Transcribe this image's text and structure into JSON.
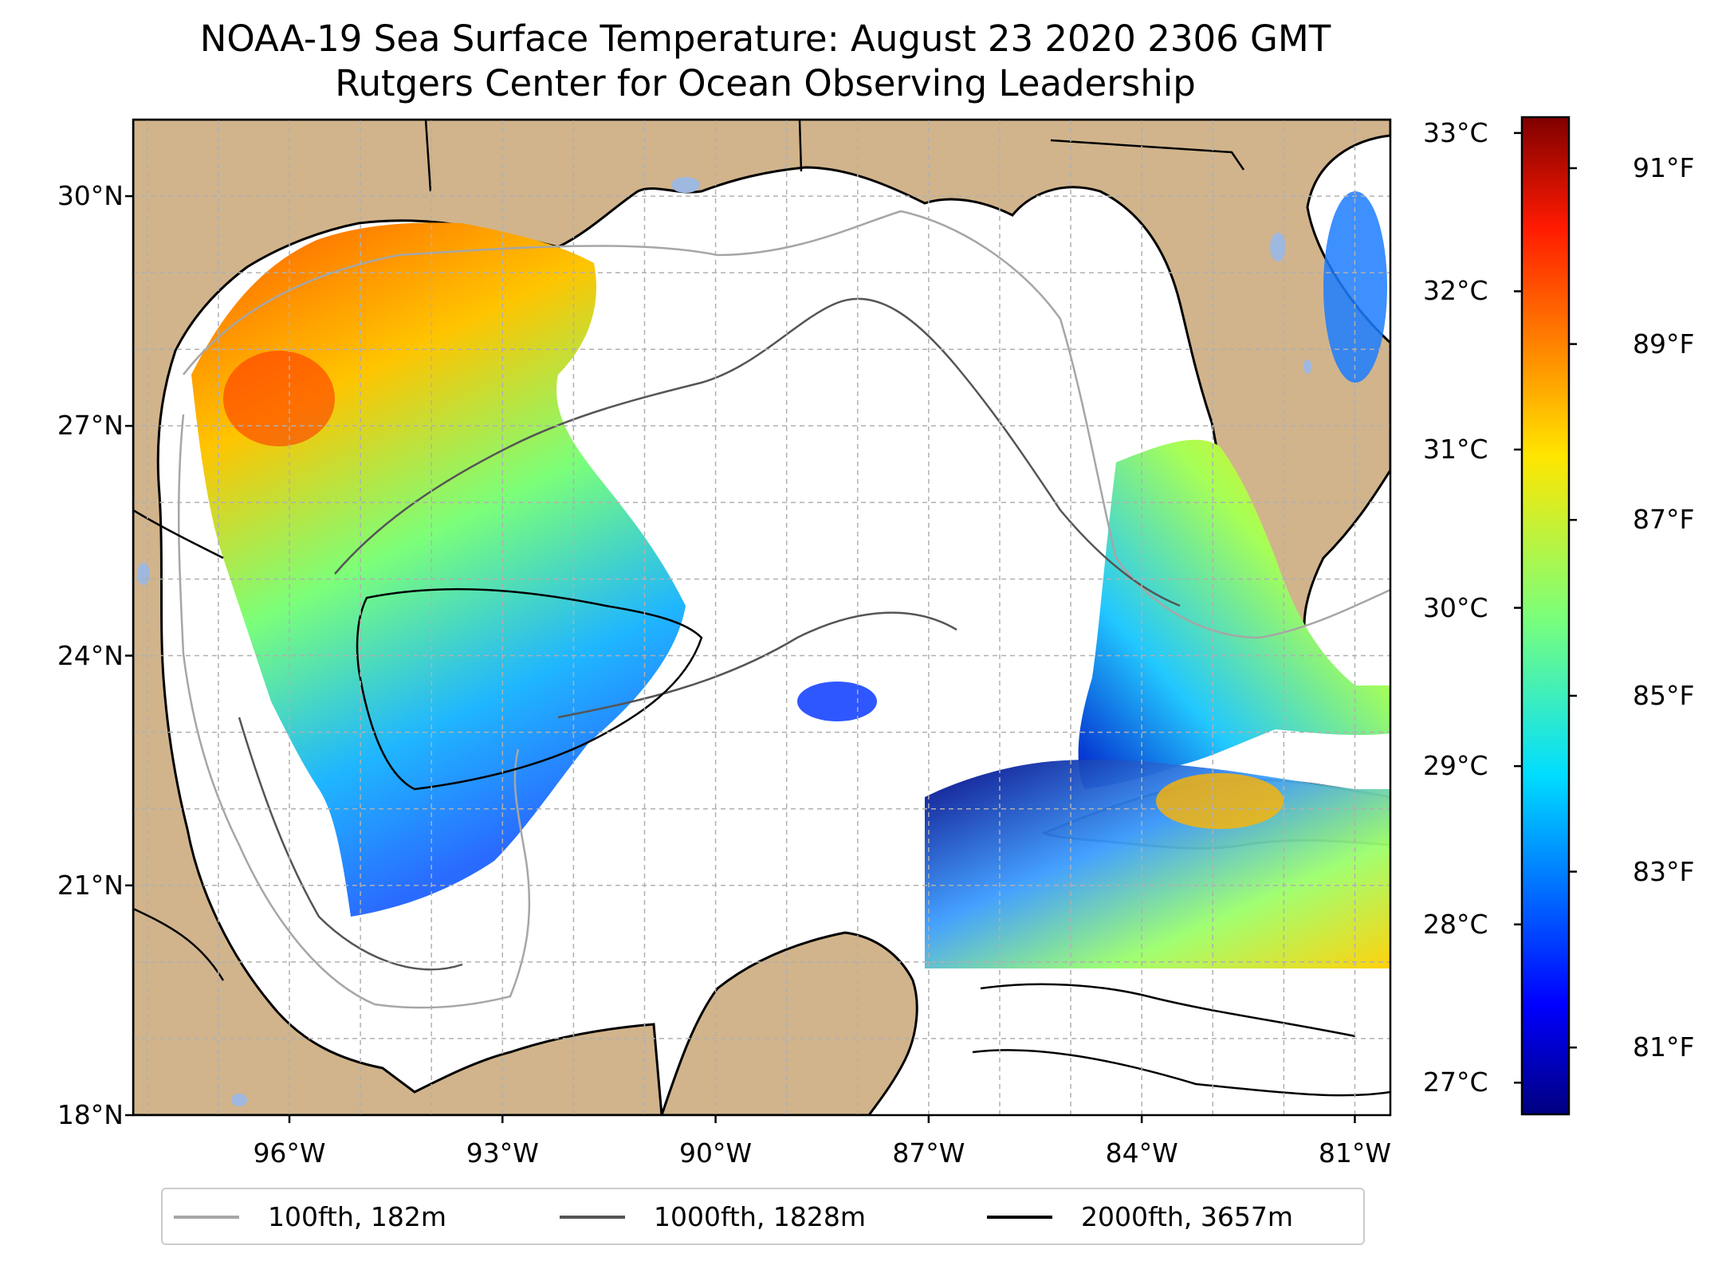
{
  "title": "NOAA-19 Sea Surface Temperature: August 23 2020 2306 GMT",
  "subtitle": "Rutgers Center for Ocean Observing Leadership",
  "colors": {
    "land": "#d1b48c",
    "ocean_nodata": "#ffffff",
    "grid": "#b0b0b0",
    "coastline": "#000000",
    "lakes": "#9fb8e0"
  },
  "map": {
    "lon_range": [
      -98.2,
      -80.5
    ],
    "lat_range": [
      18,
      31
    ],
    "lat_ticks": [
      {
        "value": 18,
        "label": "18°N"
      },
      {
        "value": 21,
        "label": "21°N"
      },
      {
        "value": 24,
        "label": "24°N"
      },
      {
        "value": 27,
        "label": "27°N"
      },
      {
        "value": 30,
        "label": "30°N"
      }
    ],
    "lon_ticks": [
      {
        "value": -96,
        "label": "96°W"
      },
      {
        "value": -93,
        "label": "93°W"
      },
      {
        "value": -90,
        "label": "90°W"
      },
      {
        "value": -87,
        "label": "87°W"
      },
      {
        "value": -84,
        "label": "84°W"
      },
      {
        "value": -81,
        "label": "81°W"
      }
    ]
  },
  "colorbar": {
    "colormap": "jet",
    "range_c": [
      26.8,
      33.1
    ],
    "celsius_ticks": [
      {
        "value": 27,
        "label": "27°C"
      },
      {
        "value": 28,
        "label": "28°C"
      },
      {
        "value": 29,
        "label": "29°C"
      },
      {
        "value": 30,
        "label": "30°C"
      },
      {
        "value": 31,
        "label": "31°C"
      },
      {
        "value": 32,
        "label": "32°C"
      },
      {
        "value": 33,
        "label": "33°C"
      }
    ],
    "fahrenheit_ticks": [
      {
        "value": 81,
        "label": "81°F"
      },
      {
        "value": 83,
        "label": "83°F"
      },
      {
        "value": 85,
        "label": "85°F"
      },
      {
        "value": 87,
        "label": "87°F"
      },
      {
        "value": 89,
        "label": "89°F"
      },
      {
        "value": 91,
        "label": "91°F"
      }
    ]
  },
  "legend": [
    {
      "label": "100fth, 182m",
      "color": "#a6a6a6"
    },
    {
      "label": "1000fth, 1828m",
      "color": "#555555"
    },
    {
      "label": "2000fth, 3657m",
      "color": "#000000"
    }
  ]
}
